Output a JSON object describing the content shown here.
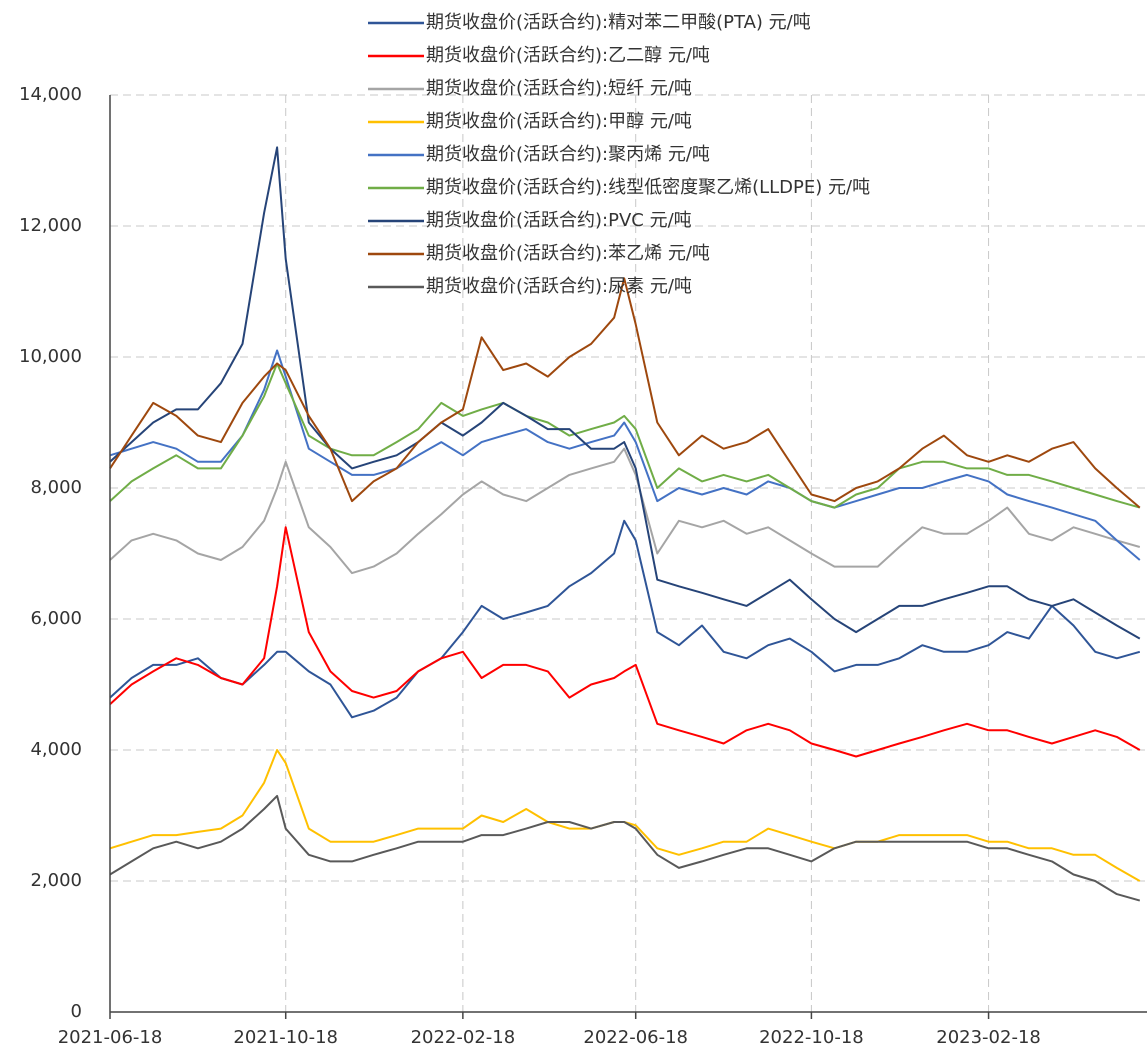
{
  "chart_data": {
    "type": "line",
    "x": [
      "2021-06-18",
      "2021-07-03",
      "2021-07-18",
      "2021-08-03",
      "2021-08-18",
      "2021-09-03",
      "2021-09-18",
      "2021-10-03",
      "2021-10-12",
      "2021-10-18",
      "2021-11-03",
      "2021-11-18",
      "2021-12-03",
      "2021-12-18",
      "2022-01-03",
      "2022-01-18",
      "2022-02-03",
      "2022-02-18",
      "2022-03-03",
      "2022-03-18",
      "2022-04-03",
      "2022-04-18",
      "2022-05-03",
      "2022-05-18",
      "2022-06-03",
      "2022-06-10",
      "2022-06-18",
      "2022-07-03",
      "2022-07-18",
      "2022-08-03",
      "2022-08-18",
      "2022-09-03",
      "2022-09-18",
      "2022-10-03",
      "2022-10-18",
      "2022-11-03",
      "2022-11-18",
      "2022-12-03",
      "2022-12-18",
      "2023-01-03",
      "2023-01-18",
      "2023-02-03",
      "2023-02-18",
      "2023-03-03",
      "2023-03-18",
      "2023-04-03",
      "2023-04-18",
      "2023-05-03",
      "2023-05-18",
      "2023-06-03"
    ],
    "xlim": [
      "2021-06-18",
      "2023-06-08"
    ],
    "xticks": [
      "2021-06-18",
      "2021-10-18",
      "2022-02-18",
      "2022-06-18",
      "2022-10-18",
      "2023-02-18"
    ],
    "ylim": [
      0,
      14000
    ],
    "yticks": [
      0,
      {
        "value": 2000,
        "label": "2,000"
      },
      {
        "value": 4000,
        "label": "4,000"
      },
      {
        "value": 6000,
        "label": "6,000"
      },
      {
        "value": 8000,
        "label": "8,000"
      },
      {
        "value": 10000,
        "label": "10,000"
      },
      {
        "value": 12000,
        "label": "12,000"
      },
      {
        "value": 14000,
        "label": "14,000"
      }
    ],
    "grid": true,
    "series": [
      {
        "name": "期货收盘价(活跃合约):精对苯二甲酸(PTA) 元/吨",
        "color": "#2f5597",
        "values": [
          4800,
          5100,
          5300,
          5300,
          5400,
          5100,
          5000,
          5300,
          5500,
          5500,
          5200,
          5000,
          4500,
          4600,
          4800,
          5200,
          5400,
          5800,
          6200,
          6000,
          6100,
          6200,
          6500,
          6700,
          7000,
          7500,
          7200,
          5800,
          5600,
          5900,
          5500,
          5400,
          5600,
          5700,
          5500,
          5200,
          5300,
          5300,
          5400,
          5600,
          5500,
          5500,
          5600,
          5800,
          5700,
          6200,
          5900,
          5500,
          5400,
          5500
        ]
      },
      {
        "name": "期货收盘价(活跃合约):乙二醇 元/吨",
        "color": "#ff0000",
        "values": [
          4700,
          5000,
          5200,
          5400,
          5300,
          5100,
          5000,
          5400,
          6500,
          7400,
          5800,
          5200,
          4900,
          4800,
          4900,
          5200,
          5400,
          5500,
          5100,
          5300,
          5300,
          5200,
          4800,
          5000,
          5100,
          5200,
          5300,
          4400,
          4300,
          4200,
          4100,
          4300,
          4400,
          4300,
          4100,
          4000,
          3900,
          4000,
          4100,
          4200,
          4300,
          4400,
          4300,
          4300,
          4200,
          4100,
          4200,
          4300,
          4200,
          4000
        ]
      },
      {
        "name": "期货收盘价(活跃合约):短纤 元/吨",
        "color": "#a5a5a5",
        "values": [
          6900,
          7200,
          7300,
          7200,
          7000,
          6900,
          7100,
          7500,
          8000,
          8400,
          7400,
          7100,
          6700,
          6800,
          7000,
          7300,
          7600,
          7900,
          8100,
          7900,
          7800,
          8000,
          8200,
          8300,
          8400,
          8600,
          8200,
          7000,
          7500,
          7400,
          7500,
          7300,
          7400,
          7200,
          7000,
          6800,
          6800,
          6800,
          7100,
          7400,
          7300,
          7300,
          7500,
          7700,
          7300,
          7200,
          7400,
          7300,
          7200,
          7100
        ]
      },
      {
        "name": "期货收盘价(活跃合约):甲醇 元/吨",
        "color": "#ffc000",
        "values": [
          2500,
          2600,
          2700,
          2700,
          2750,
          2800,
          3000,
          3500,
          4000,
          3800,
          2800,
          2600,
          2600,
          2600,
          2700,
          2800,
          2800,
          2800,
          3000,
          2900,
          3100,
          2900,
          2800,
          2800,
          2900,
          2900,
          2850,
          2500,
          2400,
          2500,
          2600,
          2600,
          2800,
          2700,
          2600,
          2500,
          2600,
          2600,
          2700,
          2700,
          2700,
          2700,
          2600,
          2600,
          2500,
          2500,
          2400,
          2400,
          2200,
          2000
        ]
      },
      {
        "name": "期货收盘价(活跃合约):聚丙烯 元/吨",
        "color": "#4472c4",
        "values": [
          8500,
          8600,
          8700,
          8600,
          8400,
          8400,
          8800,
          9500,
          10100,
          9700,
          8600,
          8400,
          8200,
          8200,
          8300,
          8500,
          8700,
          8500,
          8700,
          8800,
          8900,
          8700,
          8600,
          8700,
          8800,
          9000,
          8700,
          7800,
          8000,
          7900,
          8000,
          7900,
          8100,
          8000,
          7800,
          7700,
          7800,
          7900,
          8000,
          8000,
          8100,
          8200,
          8100,
          7900,
          7800,
          7700,
          7600,
          7500,
          7200,
          6900
        ]
      },
      {
        "name": "期货收盘价(活跃合约):线型低密度聚乙烯(LLDPE) 元/吨",
        "color": "#70ad47",
        "values": [
          7800,
          8100,
          8300,
          8500,
          8300,
          8300,
          8800,
          9400,
          9900,
          9600,
          8800,
          8600,
          8500,
          8500,
          8700,
          8900,
          9300,
          9100,
          9200,
          9300,
          9100,
          9000,
          8800,
          8900,
          9000,
          9100,
          8900,
          8000,
          8300,
          8100,
          8200,
          8100,
          8200,
          8000,
          7800,
          7700,
          7900,
          8000,
          8300,
          8400,
          8400,
          8300,
          8300,
          8200,
          8200,
          8100,
          8000,
          7900,
          7800,
          7700
        ]
      },
      {
        "name": "期货收盘价(活跃合约):PVC 元/吨",
        "color": "#264478",
        "values": [
          8400,
          8700,
          9000,
          9200,
          9200,
          9600,
          10200,
          12200,
          13200,
          11500,
          9000,
          8600,
          8300,
          8400,
          8500,
          8700,
          9000,
          8800,
          9000,
          9300,
          9100,
          8900,
          8900,
          8600,
          8600,
          8700,
          8300,
          6600,
          6500,
          6400,
          6300,
          6200,
          6400,
          6600,
          6300,
          6000,
          5800,
          6000,
          6200,
          6200,
          6300,
          6400,
          6500,
          6500,
          6300,
          6200,
          6300,
          6100,
          5900,
          5700
        ]
      },
      {
        "name": "期货收盘价(活跃合约):苯乙烯 元/吨",
        "color": "#9e480e",
        "values": [
          8300,
          8800,
          9300,
          9100,
          8800,
          8700,
          9300,
          9700,
          9900,
          9800,
          9100,
          8600,
          7800,
          8100,
          8300,
          8700,
          9000,
          9200,
          10300,
          9800,
          9900,
          9700,
          10000,
          10200,
          10600,
          11200,
          10500,
          9000,
          8500,
          8800,
          8600,
          8700,
          8900,
          8400,
          7900,
          7800,
          8000,
          8100,
          8300,
          8600,
          8800,
          8500,
          8400,
          8500,
          8400,
          8600,
          8700,
          8300,
          8000,
          7700
        ]
      },
      {
        "name": "期货收盘价(活跃合约):尿素 元/吨",
        "color": "#595959",
        "values": [
          2100,
          2300,
          2500,
          2600,
          2500,
          2600,
          2800,
          3100,
          3300,
          2800,
          2400,
          2300,
          2300,
          2400,
          2500,
          2600,
          2600,
          2600,
          2700,
          2700,
          2800,
          2900,
          2900,
          2800,
          2900,
          2900,
          2800,
          2400,
          2200,
          2300,
          2400,
          2500,
          2500,
          2400,
          2300,
          2500,
          2600,
          2600,
          2600,
          2600,
          2600,
          2600,
          2500,
          2500,
          2400,
          2300,
          2100,
          2000,
          1800,
          1700
        ]
      }
    ]
  }
}
